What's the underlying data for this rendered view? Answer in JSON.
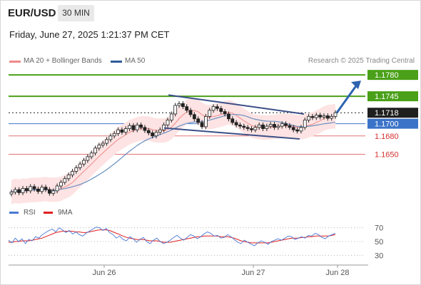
{
  "header": {
    "symbol": "EUR/USD",
    "timeframe": "30 MIN",
    "timestamp": "Friday, June 27, 2025 1:21:37 PM CET"
  },
  "legend": {
    "items": [
      {
        "label": "MA 20 + Bollinger Bands",
        "color": "#f08a8a"
      },
      {
        "label": "MA 50",
        "color": "#2f5c99"
      }
    ],
    "credit": "Research © 2025 Trading Central"
  },
  "colors": {
    "up_candle": "#ffffff",
    "down_candle": "#222222",
    "target_level": "#4aa018",
    "support_level": "#e57373",
    "pivot_level": "#3b73c8",
    "current_price": "#1f1f1f",
    "arrow": "#2f64b0",
    "bollinger_fill": "#fde3e3",
    "ma20": "#f08a8a",
    "ma50": "#6a8fc0",
    "rsi_line": "#4a78d4",
    "rsi_ma": "#e02020"
  },
  "chart_data": [
    {
      "type": "candlestick",
      "title": "EUR/USD",
      "xlabel": "",
      "ylabel": "",
      "x_ticks": [
        "Jun 26",
        "Jun 27",
        "Jun 28"
      ],
      "ylim": [
        1.157,
        1.18
      ],
      "levels": [
        {
          "value": 1.178,
          "label": "1.1780",
          "kind": "target"
        },
        {
          "value": 1.1745,
          "label": "1.1745",
          "kind": "target"
        },
        {
          "value": 1.1718,
          "label": "1.1718",
          "kind": "current"
        },
        {
          "value": 1.17,
          "label": "1.1700",
          "kind": "pivot"
        },
        {
          "value": 1.168,
          "label": "1.1680",
          "kind": "support"
        },
        {
          "value": 1.165,
          "label": "1.1650",
          "kind": "support"
        }
      ],
      "closes": [
        1.1588,
        1.1592,
        1.1587,
        1.1594,
        1.159,
        1.1597,
        1.1593,
        1.1589,
        1.1596,
        1.1592,
        1.1586,
        1.159,
        1.1598,
        1.1604,
        1.161,
        1.1616,
        1.1622,
        1.1628,
        1.1634,
        1.164,
        1.1646,
        1.1652,
        1.166,
        1.1665,
        1.1668,
        1.1674,
        1.168,
        1.1684,
        1.169,
        1.1686,
        1.1692,
        1.1697,
        1.169,
        1.1698,
        1.1694,
        1.1689,
        1.1685,
        1.168,
        1.1686,
        1.169,
        1.1698,
        1.1706,
        1.1716,
        1.173,
        1.1733,
        1.1728,
        1.1722,
        1.1715,
        1.1708,
        1.1702,
        1.1695,
        1.1712,
        1.1722,
        1.1728,
        1.1725,
        1.172,
        1.1716,
        1.1708,
        1.1702,
        1.1698,
        1.1696,
        1.1694,
        1.1692,
        1.169,
        1.1694,
        1.1698,
        1.1692,
        1.1696,
        1.1699,
        1.1694,
        1.1696,
        1.17,
        1.1697,
        1.1694,
        1.169,
        1.1688,
        1.1694,
        1.1706,
        1.1712,
        1.171,
        1.1714,
        1.1711,
        1.1713,
        1.1709,
        1.1712,
        1.1718
      ],
      "bollinger": {
        "upper_offset": 0.002,
        "lower_offset": 0.002
      },
      "projection": {
        "from": 1.1718,
        "to": 1.178
      }
    },
    {
      "type": "line",
      "title": "RSI",
      "series": [
        {
          "name": "RSI",
          "values": [
            52,
            48,
            55,
            50,
            54,
            47,
            53,
            51,
            57,
            55,
            60,
            63,
            66,
            68,
            64,
            70,
            67,
            63,
            66,
            61,
            64,
            60,
            58,
            62,
            65,
            68,
            71,
            70,
            66,
            69,
            63,
            60,
            55,
            58,
            53,
            51,
            57,
            54,
            49,
            53,
            56,
            50,
            47,
            52,
            55,
            50,
            47,
            49,
            52,
            56,
            59,
            55,
            52,
            56,
            60,
            58,
            54,
            57,
            61,
            64,
            62,
            58,
            59,
            55,
            56,
            60,
            57,
            53,
            49,
            47,
            52,
            49,
            46,
            44,
            48,
            51,
            49,
            46,
            50,
            52,
            54,
            52,
            55,
            58,
            57,
            53,
            55,
            57,
            55,
            59,
            58,
            62,
            60,
            56,
            54,
            58,
            60,
            62
          ]
        },
        {
          "name": "9MA",
          "values": [
            49,
            49,
            50,
            50,
            51,
            51,
            51,
            52,
            53,
            54,
            55,
            57,
            59,
            61,
            63,
            64,
            65,
            65,
            65,
            65,
            64,
            64,
            63,
            63,
            64,
            65,
            66,
            67,
            67,
            67,
            66,
            64,
            62,
            60,
            58,
            56,
            55,
            54,
            53,
            53,
            53,
            52,
            51,
            51,
            51,
            50,
            49,
            49,
            49,
            50,
            51,
            52,
            53,
            54,
            55,
            56,
            57,
            57,
            58,
            58,
            58,
            58,
            58,
            57,
            57,
            57,
            56,
            55,
            53,
            51,
            50,
            49,
            48,
            48,
            48,
            48,
            48,
            48,
            49,
            50,
            51,
            52,
            53,
            54,
            55,
            55,
            55,
            56,
            56,
            57,
            57,
            58,
            58,
            58,
            58,
            58,
            59,
            60
          ]
        }
      ],
      "y_ticks": [
        30,
        50,
        70
      ],
      "ylim": [
        20,
        80
      ]
    }
  ],
  "rsi_legend": {
    "rsi": "RSI",
    "ma": "9MA"
  }
}
